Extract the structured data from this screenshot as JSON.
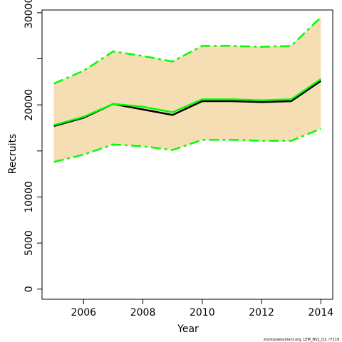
{
  "chart_data": {
    "type": "area",
    "xlabel": "Year",
    "ylabel": "Recruits",
    "xlim": [
      2004.6,
      2014.4
    ],
    "ylim": [
      -1100,
      30300
    ],
    "x_ticks": [
      2006,
      2008,
      2010,
      2012,
      2014
    ],
    "y_ticks": [
      0,
      5000,
      10000,
      20000,
      30000
    ],
    "y_minor_ticks": [
      15000,
      25000
    ],
    "x": [
      2005,
      2006,
      2007,
      2008,
      2009,
      2010,
      2011,
      2012,
      2013,
      2014
    ],
    "band_upper": [
      22300,
      23700,
      25800,
      25300,
      24700,
      26400,
      26400,
      26300,
      26400,
      29500
    ],
    "band_lower": [
      13800,
      14600,
      15700,
      15500,
      15100,
      16200,
      16200,
      16100,
      16100,
      17400
    ],
    "series": [
      {
        "values": [
          17700,
          18600,
          20100,
          19500,
          18900,
          20400,
          20400,
          20300,
          20400,
          22600
        ]
      },
      {
        "values": [
          17800,
          18700,
          20100,
          19800,
          19200,
          20600,
          20600,
          20500,
          20600,
          22800
        ]
      }
    ],
    "colors": {
      "band": "#F5DEB3",
      "line_main": "#000000",
      "line_green": "#00FF00"
    },
    "footer": "stockassessment.org, LEM_NS2_Q1, r7219"
  }
}
